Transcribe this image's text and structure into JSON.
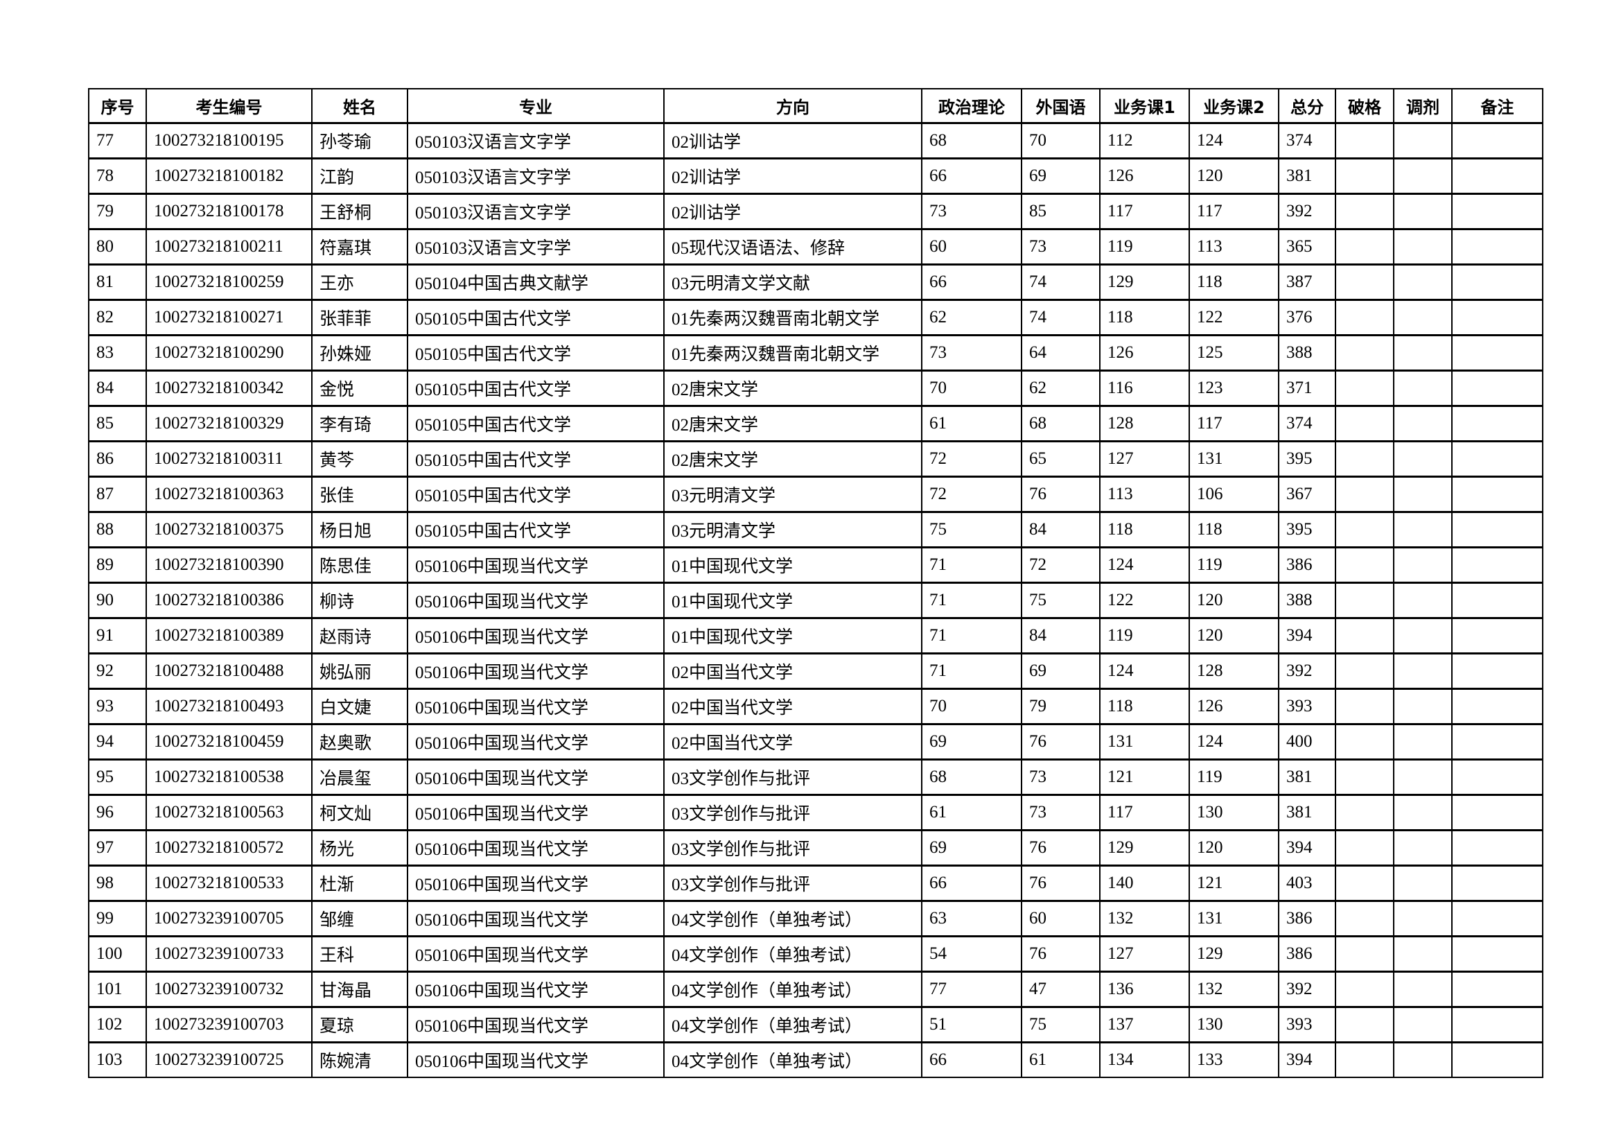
{
  "table": {
    "headers": [
      "序号",
      "考生编号",
      "姓名",
      "专业",
      "方向",
      "政治理论",
      "外国语",
      "业务课1",
      "业务课2",
      "总分",
      "破格",
      "调剂",
      "备注"
    ],
    "rows": [
      [
        "77",
        "100273218100195",
        "孙苓瑜",
        "050103汉语言文字学",
        "02训诂学",
        "68",
        "70",
        "112",
        "124",
        "374",
        "",
        "",
        ""
      ],
      [
        "78",
        "100273218100182",
        "江韵",
        "050103汉语言文字学",
        "02训诂学",
        "66",
        "69",
        "126",
        "120",
        "381",
        "",
        "",
        ""
      ],
      [
        "79",
        "100273218100178",
        "王舒桐",
        "050103汉语言文字学",
        "02训诂学",
        "73",
        "85",
        "117",
        "117",
        "392",
        "",
        "",
        ""
      ],
      [
        "80",
        "100273218100211",
        "符嘉琪",
        "050103汉语言文字学",
        "05现代汉语语法、修辞",
        "60",
        "73",
        "119",
        "113",
        "365",
        "",
        "",
        ""
      ],
      [
        "81",
        "100273218100259",
        "王亦",
        "050104中国古典文献学",
        "03元明清文学文献",
        "66",
        "74",
        "129",
        "118",
        "387",
        "",
        "",
        ""
      ],
      [
        "82",
        "100273218100271",
        "张菲菲",
        "050105中国古代文学",
        "01先秦两汉魏晋南北朝文学",
        "62",
        "74",
        "118",
        "122",
        "376",
        "",
        "",
        ""
      ],
      [
        "83",
        "100273218100290",
        "孙姝娅",
        "050105中国古代文学",
        "01先秦两汉魏晋南北朝文学",
        "73",
        "64",
        "126",
        "125",
        "388",
        "",
        "",
        ""
      ],
      [
        "84",
        "100273218100342",
        "金悦",
        "050105中国古代文学",
        "02唐宋文学",
        "70",
        "62",
        "116",
        "123",
        "371",
        "",
        "",
        ""
      ],
      [
        "85",
        "100273218100329",
        "李有琦",
        "050105中国古代文学",
        "02唐宋文学",
        "61",
        "68",
        "128",
        "117",
        "374",
        "",
        "",
        ""
      ],
      [
        "86",
        "100273218100311",
        "黄芩",
        "050105中国古代文学",
        "02唐宋文学",
        "72",
        "65",
        "127",
        "131",
        "395",
        "",
        "",
        ""
      ],
      [
        "87",
        "100273218100363",
        "张佳",
        "050105中国古代文学",
        "03元明清文学",
        "72",
        "76",
        "113",
        "106",
        "367",
        "",
        "",
        ""
      ],
      [
        "88",
        "100273218100375",
        "杨日旭",
        "050105中国古代文学",
        "03元明清文学",
        "75",
        "84",
        "118",
        "118",
        "395",
        "",
        "",
        ""
      ],
      [
        "89",
        "100273218100390",
        "陈思佳",
        "050106中国现当代文学",
        "01中国现代文学",
        "71",
        "72",
        "124",
        "119",
        "386",
        "",
        "",
        ""
      ],
      [
        "90",
        "100273218100386",
        "柳诗",
        "050106中国现当代文学",
        "01中国现代文学",
        "71",
        "75",
        "122",
        "120",
        "388",
        "",
        "",
        ""
      ],
      [
        "91",
        "100273218100389",
        "赵雨诗",
        "050106中国现当代文学",
        "01中国现代文学",
        "71",
        "84",
        "119",
        "120",
        "394",
        "",
        "",
        ""
      ],
      [
        "92",
        "100273218100488",
        "姚弘丽",
        "050106中国现当代文学",
        "02中国当代文学",
        "71",
        "69",
        "124",
        "128",
        "392",
        "",
        "",
        ""
      ],
      [
        "93",
        "100273218100493",
        "白文婕",
        "050106中国现当代文学",
        "02中国当代文学",
        "70",
        "79",
        "118",
        "126",
        "393",
        "",
        "",
        ""
      ],
      [
        "94",
        "100273218100459",
        "赵奥歌",
        "050106中国现当代文学",
        "02中国当代文学",
        "69",
        "76",
        "131",
        "124",
        "400",
        "",
        "",
        ""
      ],
      [
        "95",
        "100273218100538",
        "冶晨玺",
        "050106中国现当代文学",
        "03文学创作与批评",
        "68",
        "73",
        "121",
        "119",
        "381",
        "",
        "",
        ""
      ],
      [
        "96",
        "100273218100563",
        "柯文灿",
        "050106中国现当代文学",
        "03文学创作与批评",
        "61",
        "73",
        "117",
        "130",
        "381",
        "",
        "",
        ""
      ],
      [
        "97",
        "100273218100572",
        "杨光",
        "050106中国现当代文学",
        "03文学创作与批评",
        "69",
        "76",
        "129",
        "120",
        "394",
        "",
        "",
        ""
      ],
      [
        "98",
        "100273218100533",
        "杜渐",
        "050106中国现当代文学",
        "03文学创作与批评",
        "66",
        "76",
        "140",
        "121",
        "403",
        "",
        "",
        ""
      ],
      [
        "99",
        "100273239100705",
        "邹缠",
        "050106中国现当代文学",
        "04文学创作（单独考试）",
        "63",
        "60",
        "132",
        "131",
        "386",
        "",
        "",
        ""
      ],
      [
        "100",
        "100273239100733",
        "王科",
        "050106中国现当代文学",
        "04文学创作（单独考试）",
        "54",
        "76",
        "127",
        "129",
        "386",
        "",
        "",
        ""
      ],
      [
        "101",
        "100273239100732",
        "甘海晶",
        "050106中国现当代文学",
        "04文学创作（单独考试）",
        "77",
        "47",
        "136",
        "132",
        "392",
        "",
        "",
        ""
      ],
      [
        "102",
        "100273239100703",
        "夏琼",
        "050106中国现当代文学",
        "04文学创作（单独考试）",
        "51",
        "75",
        "137",
        "130",
        "393",
        "",
        "",
        ""
      ],
      [
        "103",
        "100273239100725",
        "陈婉清",
        "050106中国现当代文学",
        "04文学创作（单独考试）",
        "66",
        "61",
        "134",
        "133",
        "394",
        "",
        "",
        ""
      ]
    ]
  }
}
